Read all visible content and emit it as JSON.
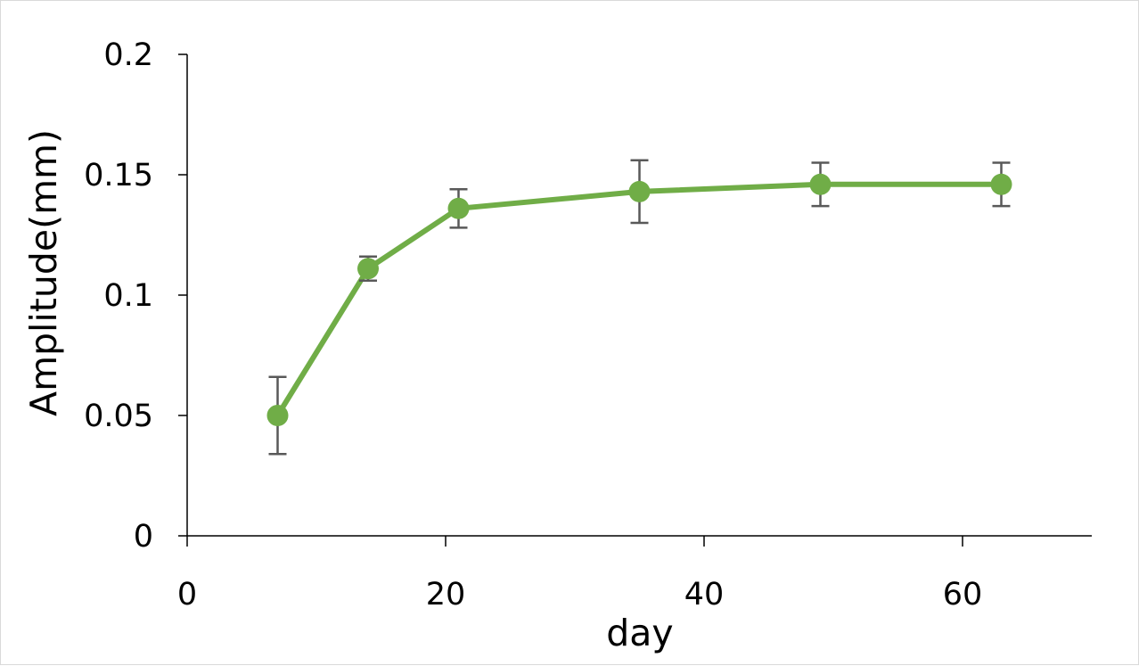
{
  "chart_data": {
    "type": "line",
    "title": "",
    "xlabel": "day",
    "ylabel": "Amplitude(mm)",
    "xlim": [
      0,
      70
    ],
    "ylim": [
      0,
      0.2
    ],
    "x_ticks": [
      0,
      20,
      40,
      60
    ],
    "x_tick_labels": [
      "0",
      "20",
      "40",
      "60"
    ],
    "y_ticks": [
      0,
      0.05,
      0.1,
      0.15,
      0.2
    ],
    "y_tick_labels": [
      "0",
      "0.05",
      "0.1",
      "0.15",
      "0.2"
    ],
    "grid": false,
    "legend": "none",
    "series": [
      {
        "color": "#70ad47",
        "error_bar_color": "#595959",
        "points": [
          {
            "x": 7,
            "y": 0.05,
            "err": 0.016
          },
          {
            "x": 14,
            "y": 0.111,
            "err": 0.005
          },
          {
            "x": 21,
            "y": 0.136,
            "err": 0.008
          },
          {
            "x": 35,
            "y": 0.143,
            "err": 0.013
          },
          {
            "x": 49,
            "y": 0.146,
            "err": 0.009
          },
          {
            "x": 63,
            "y": 0.146,
            "err": 0.009
          }
        ]
      }
    ]
  }
}
